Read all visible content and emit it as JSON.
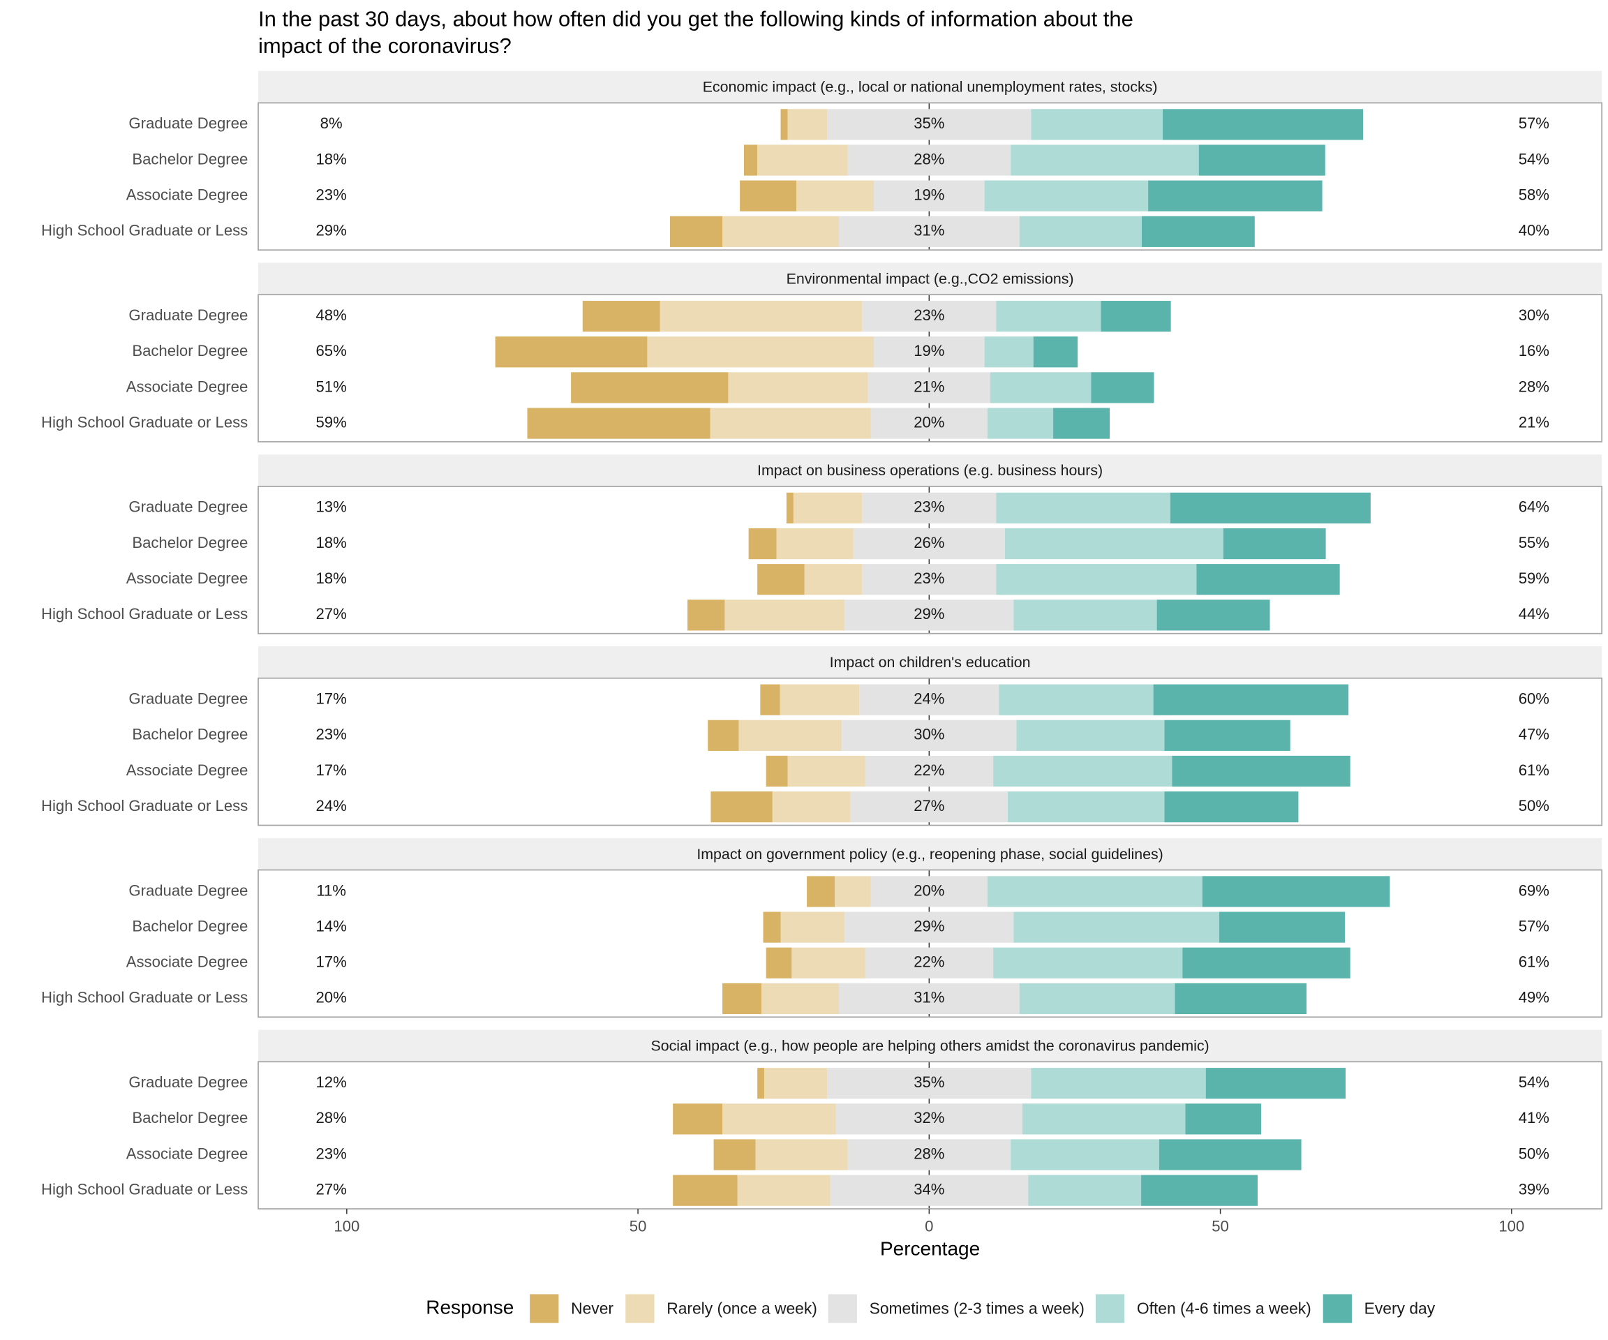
{
  "chart_data": {
    "type": "likert",
    "title": [
      "In the past 30 days, about how often did you get the following kinds of information about the",
      "impact of the coronavirus?"
    ],
    "xlabel": "Percentage",
    "xlim": [
      -115.2,
      115.5
    ],
    "xticks": [
      {
        "value": -100,
        "label": "100"
      },
      {
        "value": -50,
        "label": "50"
      },
      0,
      50,
      100
    ],
    "legend_title": "Response",
    "series": [
      {
        "name": "Never",
        "color": "#d8b365"
      },
      {
        "name": "Rarely (once a week)",
        "color": "#ecdbb4"
      },
      {
        "name": "Sometimes (2-3 times a week)",
        "color": "#e3e3e3"
      },
      {
        "name": "Often (4-6 times a week)",
        "color": "#afdbd6"
      },
      {
        "name": "Every day",
        "color": "#5ab4ac"
      }
    ],
    "panels": [
      {
        "title": "Economic impact (e.g., local or national unemployment rates, stocks)",
        "categories": [
          "Graduate Degree",
          "Bachelor Degree",
          "Associate Degree",
          "High School Graduate or Less"
        ],
        "values": [
          [
            1.2,
            6.8,
            35,
            22.6,
            34.4
          ],
          [
            2.3,
            15.5,
            28,
            32.3,
            21.7
          ],
          [
            9.7,
            13.3,
            19,
            28.1,
            29.9
          ],
          [
            9,
            20,
            31,
            21,
            19.4
          ]
        ],
        "summary": [
          [
            8,
            35,
            57
          ],
          [
            18,
            28,
            54
          ],
          [
            23,
            19,
            58
          ],
          [
            29,
            31,
            40
          ]
        ],
        "summary_labels": [
          [
            "8%",
            "35%",
            "57%"
          ],
          [
            "18%",
            "28%",
            "54%"
          ],
          [
            "23%",
            "19%",
            "58%"
          ],
          [
            "29%",
            "31%",
            "40%"
          ]
        ]
      },
      {
        "title": "Environmental impact (e.g.,CO2 emissions)",
        "categories": [
          "Graduate Degree",
          "Bachelor Degree",
          "Associate Degree",
          "High School Graduate or Less"
        ],
        "values": [
          [
            13.3,
            34.7,
            23,
            18,
            12
          ],
          [
            26.1,
            38.9,
            19,
            8.4,
            7.6
          ],
          [
            27,
            24,
            21,
            17.3,
            10.8
          ],
          [
            31.4,
            27.6,
            20,
            11.3,
            9.7
          ]
        ],
        "summary": [
          [
            48,
            23,
            30
          ],
          [
            65,
            19,
            16
          ],
          [
            51,
            21,
            28
          ],
          [
            59,
            20,
            21
          ]
        ],
        "summary_labels": [
          [
            "48%",
            "23%",
            "30%"
          ],
          [
            "65%",
            "19%",
            "16%"
          ],
          [
            "51%",
            "21%",
            "28%"
          ],
          [
            "59%",
            "20%",
            "21%"
          ]
        ]
      },
      {
        "title": "Impact on business operations (e.g. business hours)",
        "categories": [
          "Graduate Degree",
          "Bachelor Degree",
          "Associate Degree",
          "High School Graduate or Less"
        ],
        "values": [
          [
            1.2,
            11.8,
            23,
            29.9,
            34.4
          ],
          [
            4.8,
            13.2,
            26,
            37.5,
            17.6
          ],
          [
            8.1,
            9.9,
            23,
            34.4,
            24.6
          ],
          [
            6.4,
            20.6,
            29,
            24.6,
            19.4
          ]
        ],
        "summary": [
          [
            13,
            23,
            64
          ],
          [
            18,
            26,
            55
          ],
          [
            18,
            23,
            59
          ],
          [
            27,
            29,
            44
          ]
        ],
        "summary_labels": [
          [
            "13%",
            "23%",
            "64%"
          ],
          [
            "18%",
            "26%",
            "55%"
          ],
          [
            "18%",
            "23%",
            "59%"
          ],
          [
            "27%",
            "29%",
            "44%"
          ]
        ]
      },
      {
        "title": "Impact on children's education",
        "categories": [
          "Graduate Degree",
          "Bachelor Degree",
          "Associate Degree",
          "High School Graduate or Less"
        ],
        "values": [
          [
            3.4,
            13.6,
            24,
            26.5,
            33.5
          ],
          [
            5.3,
            17.7,
            30,
            25.4,
            21.6
          ],
          [
            3.7,
            13.3,
            22,
            30.7,
            30.6
          ],
          [
            10.6,
            13.4,
            27,
            26.9,
            23
          ]
        ],
        "summary": [
          [
            17,
            24,
            60
          ],
          [
            23,
            30,
            47
          ],
          [
            17,
            22,
            61
          ],
          [
            24,
            27,
            50
          ]
        ],
        "summary_labels": [
          [
            "17%",
            "24%",
            "60%"
          ],
          [
            "23%",
            "30%",
            "47%"
          ],
          [
            "17%",
            "22%",
            "61%"
          ],
          [
            "24%",
            "27%",
            "50%"
          ]
        ]
      },
      {
        "title": "Impact on government policy (e.g., reopening phase, social guidelines)",
        "categories": [
          "Graduate Degree",
          "Bachelor Degree",
          "Associate Degree",
          "High School Graduate or Less"
        ],
        "values": [
          [
            4.8,
            6.2,
            20,
            36.9,
            32.2
          ],
          [
            3,
            11,
            29,
            35.3,
            21.6
          ],
          [
            4.4,
            12.6,
            22,
            32.5,
            28.8
          ],
          [
            6.7,
            13.3,
            31,
            26.7,
            22.6
          ]
        ],
        "summary": [
          [
            11,
            20,
            69
          ],
          [
            14,
            29,
            57
          ],
          [
            17,
            22,
            61
          ],
          [
            20,
            31,
            49
          ]
        ],
        "summary_labels": [
          [
            "11%",
            "20%",
            "69%"
          ],
          [
            "14%",
            "29%",
            "57%"
          ],
          [
            "17%",
            "22%",
            "61%"
          ],
          [
            "20%",
            "31%",
            "49%"
          ]
        ]
      },
      {
        "title": "Social impact (e.g., how people are helping others amidst the coronavirus pandemic)",
        "categories": [
          "Graduate Degree",
          "Bachelor Degree",
          "Associate Degree",
          "High School Graduate or Less"
        ],
        "values": [
          [
            1.2,
            10.8,
            35,
            30,
            24
          ],
          [
            8.5,
            19.5,
            32,
            28,
            13
          ],
          [
            7.2,
            15.8,
            28,
            25.5,
            24.4
          ],
          [
            11.1,
            15.9,
            34,
            19.4,
            20
          ]
        ],
        "summary": [
          [
            12,
            35,
            54
          ],
          [
            28,
            32,
            41
          ],
          [
            23,
            28,
            50
          ],
          [
            27,
            34,
            39
          ]
        ],
        "summary_labels": [
          [
            "12%",
            "35%",
            "54%"
          ],
          [
            "28%",
            "32%",
            "41%"
          ],
          [
            "23%",
            "28%",
            "50%"
          ],
          [
            "27%",
            "34%",
            "39%"
          ]
        ]
      }
    ]
  }
}
